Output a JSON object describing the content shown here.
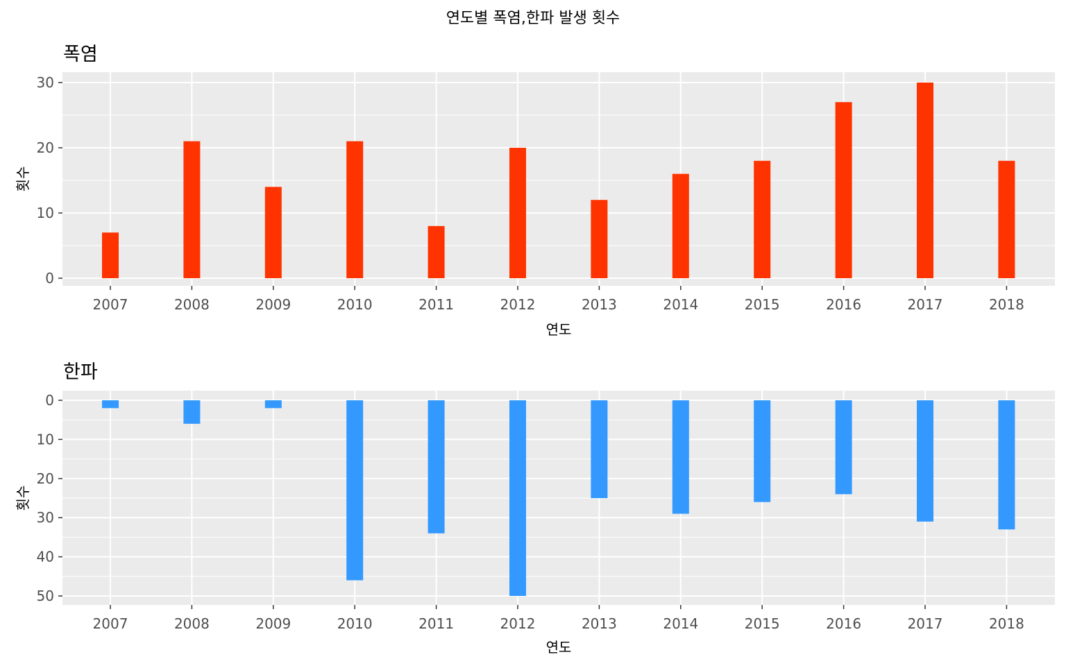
{
  "title": "연도별 폭염,한파 발생 횟수",
  "chart_data": [
    {
      "type": "bar",
      "title": "폭염",
      "xlabel": "연도",
      "ylabel": "횟수",
      "categories": [
        "2007",
        "2008",
        "2009",
        "2010",
        "2011",
        "2012",
        "2013",
        "2014",
        "2015",
        "2016",
        "2017",
        "2018"
      ],
      "values": [
        7,
        21,
        14,
        21,
        8,
        20,
        12,
        16,
        18,
        27,
        30,
        18
      ],
      "ylim": [
        0,
        30
      ],
      "yticks": [
        "0",
        "10",
        "20",
        "30"
      ],
      "ytick_values": [
        0,
        10,
        20,
        30
      ],
      "y_reversed": false,
      "grid": true,
      "color": "#ff3300",
      "panel_bg": "#ebebeb"
    },
    {
      "type": "bar",
      "title": "한파",
      "xlabel": "연도",
      "ylabel": "횟수",
      "categories": [
        "2007",
        "2008",
        "2009",
        "2010",
        "2011",
        "2012",
        "2013",
        "2014",
        "2015",
        "2016",
        "2017",
        "2018"
      ],
      "values": [
        2,
        6,
        2,
        46,
        34,
        50,
        25,
        29,
        26,
        24,
        31,
        33
      ],
      "ylim": [
        0,
        50
      ],
      "yticks": [
        "0",
        "10",
        "20",
        "30",
        "40",
        "50"
      ],
      "ytick_values": [
        0,
        10,
        20,
        30,
        40,
        50
      ],
      "y_reversed": true,
      "grid": true,
      "color": "#3399ff",
      "panel_bg": "#ebebeb"
    }
  ]
}
